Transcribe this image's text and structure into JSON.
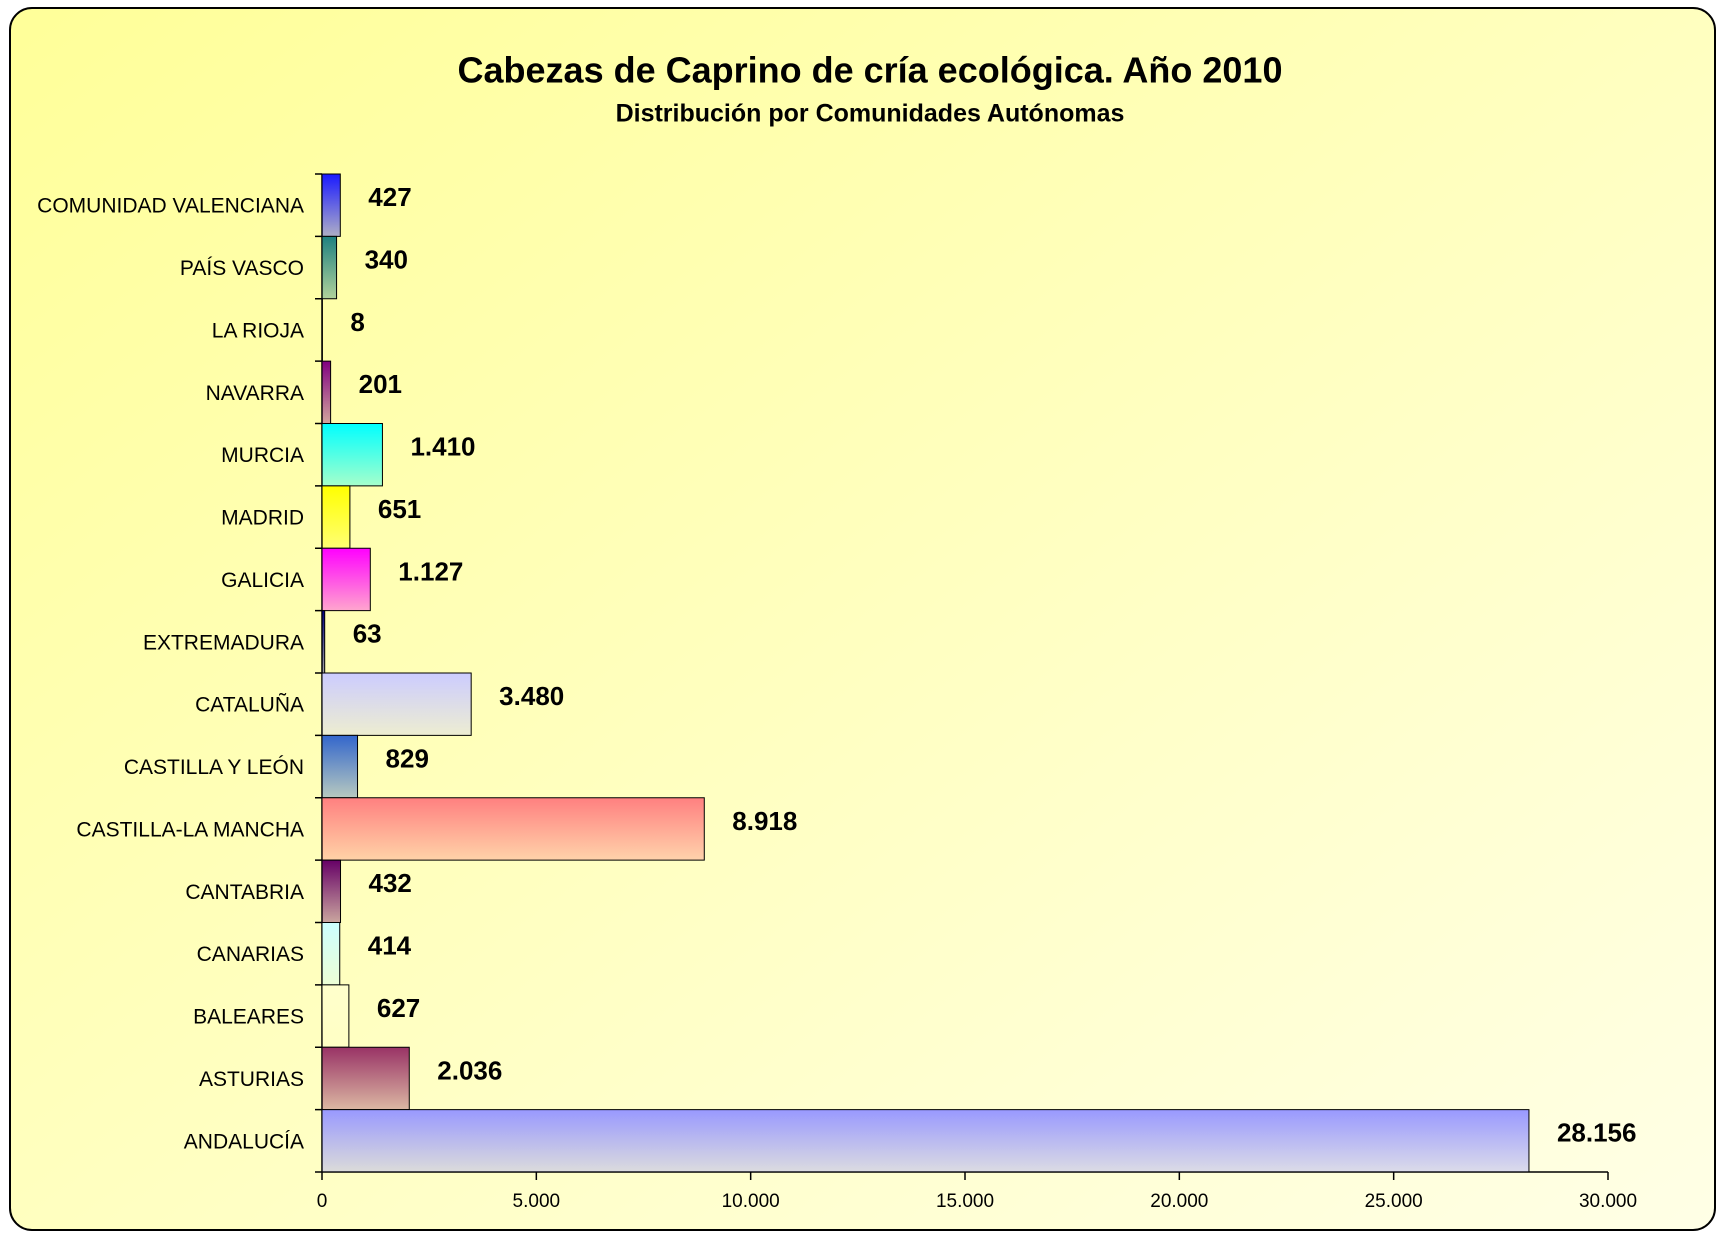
{
  "chart_data": {
    "type": "bar",
    "orientation": "horizontal",
    "title": "Cabezas de Caprino de cría ecológica. Año 2010",
    "subtitle": "Distribución por Comunidades Autónomas",
    "categories": [
      "COMUNIDAD VALENCIANA",
      "PAÍS VASCO",
      "LA RIOJA",
      "NAVARRA",
      "MURCIA",
      "MADRID",
      "GALICIA",
      "EXTREMADURA",
      "CATALUÑA",
      "CASTILLA Y LEÓN",
      "CASTILLA-LA MANCHA",
      "CANTABRIA",
      "CANARIAS",
      "BALEARES",
      "ASTURIAS",
      "ANDALUCÍA"
    ],
    "values": [
      427,
      340,
      8,
      201,
      1410,
      651,
      1127,
      63,
      3480,
      829,
      8918,
      432,
      414,
      627,
      2036,
      28156
    ],
    "value_labels": [
      "427",
      "340",
      "8",
      "201",
      "1.410",
      "651",
      "1.127",
      "63",
      "3.480",
      "829",
      "8.918",
      "432",
      "414",
      "627",
      "2.036",
      "28.156"
    ],
    "colors": [
      "#1a1aff",
      "#1f8080",
      "#ffffcc",
      "#800080",
      "#00ffff",
      "#ffff00",
      "#ff00ff",
      "#000080",
      "#ccccff",
      "#3366cc",
      "#ff8080",
      "#660066",
      "#ccffff",
      "#ffffcc",
      "#993366",
      "#9999ff"
    ],
    "xlim": [
      0,
      30000
    ],
    "xticks": [
      0,
      {
        "value": 5000,
        "label": "5.000"
      },
      {
        "value": 10000,
        "label": "10.000"
      },
      {
        "value": 15000,
        "label": "15.000"
      },
      {
        "value": 20000,
        "label": "20.000"
      },
      {
        "value": 25000,
        "label": "25.000"
      },
      {
        "value": 30000,
        "label": "30.000"
      }
    ],
    "grid": false
  }
}
